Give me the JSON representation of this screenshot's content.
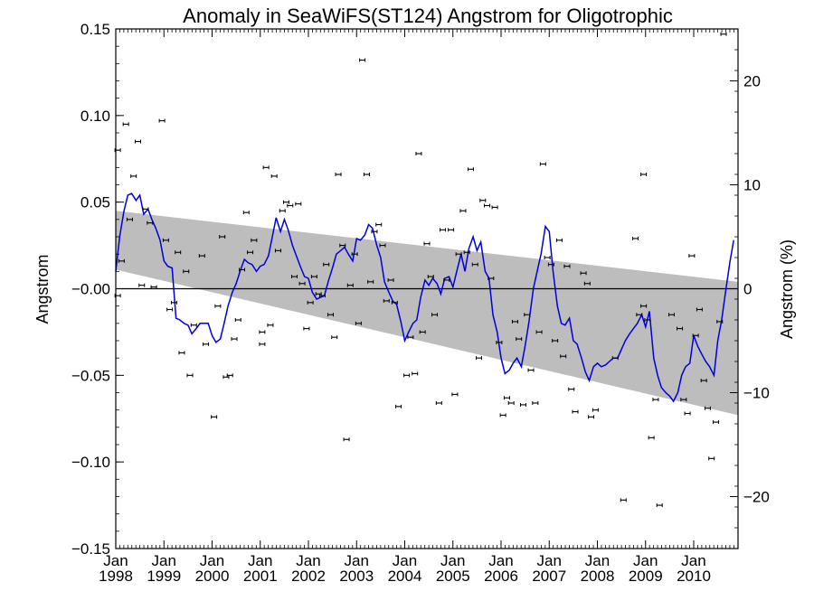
{
  "chart_data": {
    "type": "scatter",
    "title": "Anomaly in SeaWiFS(ST124) Angstrom for Oligotrophic",
    "ylabel": "Angstrom",
    "y2label": "Angstrom (%)",
    "xlim": [
      1998.0,
      2010.92
    ],
    "ylim": [
      -0.15,
      0.15
    ],
    "y2lim": [
      -25,
      25
    ],
    "grid": false,
    "zero_line": true,
    "colors": {
      "smooth": "#0000dd",
      "band": "#bdbdbd",
      "points": "#000000"
    },
    "x_ticks": [
      {
        "value": 1998.0,
        "month": "Jan",
        "year": "1998"
      },
      {
        "value": 1999.0,
        "month": "Jan",
        "year": "1999"
      },
      {
        "value": 2000.0,
        "month": "Jan",
        "year": "2000"
      },
      {
        "value": 2001.0,
        "month": "Jan",
        "year": "2001"
      },
      {
        "value": 2002.0,
        "month": "Jan",
        "year": "2002"
      },
      {
        "value": 2003.0,
        "month": "Jan",
        "year": "2003"
      },
      {
        "value": 2004.0,
        "month": "Jan",
        "year": "2004"
      },
      {
        "value": 2005.0,
        "month": "Jan",
        "year": "2005"
      },
      {
        "value": 2006.0,
        "month": "Jan",
        "year": "2006"
      },
      {
        "value": 2007.0,
        "month": "Jan",
        "year": "2007"
      },
      {
        "value": 2008.0,
        "month": "Jan",
        "year": "2008"
      },
      {
        "value": 2009.0,
        "month": "Jan",
        "year": "2009"
      },
      {
        "value": 2010.0,
        "month": "Jan",
        "year": "2010"
      }
    ],
    "y_ticks": [
      {
        "value": 0.15,
        "label": "0.15"
      },
      {
        "value": 0.1,
        "label": "0.10"
      },
      {
        "value": 0.05,
        "label": "0.05"
      },
      {
        "value": 0.0,
        "label": "−0.00"
      },
      {
        "value": -0.05,
        "label": "−0.05"
      },
      {
        "value": -0.1,
        "label": "−0.10"
      },
      {
        "value": -0.15,
        "label": "−0.15"
      }
    ],
    "y2_ticks": [
      {
        "value": 20,
        "label": "20"
      },
      {
        "value": 10,
        "label": "10"
      },
      {
        "value": 0,
        "label": "0"
      },
      {
        "value": -10,
        "label": "−10"
      },
      {
        "value": -20,
        "label": "−20"
      }
    ],
    "band": {
      "x": [
        1998.0,
        2010.92
      ],
      "upper": [
        0.045,
        0.004
      ],
      "lower": [
        0.011,
        -0.073
      ]
    },
    "points": [
      [
        1998.04,
        0.08
      ],
      [
        1998.04,
        -0.004
      ],
      [
        1998.12,
        0.016
      ],
      [
        1998.21,
        0.095
      ],
      [
        1998.29,
        0.04
      ],
      [
        1998.37,
        0.065
      ],
      [
        1998.46,
        0.085
      ],
      [
        1998.54,
        0.002
      ],
      [
        1998.62,
        0.046
      ],
      [
        1998.71,
        0.038
      ],
      [
        1998.79,
        0.001
      ],
      [
        1998.96,
        0.097
      ],
      [
        1999.04,
        0.028
      ],
      [
        1999.12,
        -0.012
      ],
      [
        1999.21,
        -0.008
      ],
      [
        1999.29,
        0.021
      ],
      [
        1999.37,
        -0.037
      ],
      [
        1999.46,
        0.01
      ],
      [
        1999.54,
        -0.05
      ],
      [
        1999.62,
        -0.021
      ],
      [
        1999.79,
        0.019
      ],
      [
        1999.87,
        -0.032
      ],
      [
        2000.04,
        -0.074
      ],
      [
        2000.12,
        -0.01
      ],
      [
        2000.21,
        0.03
      ],
      [
        2000.29,
        -0.051
      ],
      [
        2000.37,
        -0.05
      ],
      [
        2000.46,
        -0.029
      ],
      [
        2000.54,
        -0.018
      ],
      [
        2000.62,
        0.011
      ],
      [
        2000.71,
        0.044
      ],
      [
        2000.79,
        0.021
      ],
      [
        2000.87,
        0.028
      ],
      [
        2001.04,
        -0.025
      ],
      [
        2001.04,
        -0.032
      ],
      [
        2001.12,
        0.07
      ],
      [
        2001.21,
        -0.021
      ],
      [
        2001.29,
        0.065
      ],
      [
        2001.37,
        0.022
      ],
      [
        2001.46,
        0.045
      ],
      [
        2001.54,
        0.05
      ],
      [
        2001.62,
        0.048
      ],
      [
        2001.71,
        0.007
      ],
      [
        2001.79,
        0.049
      ],
      [
        2001.87,
        0.003
      ],
      [
        2001.96,
        -0.023
      ],
      [
        2002.04,
        -0.008
      ],
      [
        2002.12,
        0.007
      ],
      [
        2002.21,
        -0.003
      ],
      [
        2002.29,
        -0.004
      ],
      [
        2002.37,
        0.014
      ],
      [
        2002.46,
        -0.015
      ],
      [
        2002.54,
        -0.028
      ],
      [
        2002.62,
        0.066
      ],
      [
        2002.71,
        0.025
      ],
      [
        2002.79,
        -0.087
      ],
      [
        2002.87,
        0.002
      ],
      [
        2002.96,
        0.02
      ],
      [
        2003.04,
        -0.02
      ],
      [
        2003.12,
        0.132
      ],
      [
        2003.21,
        0.066
      ],
      [
        2003.29,
        0.004
      ],
      [
        2003.37,
        0.033
      ],
      [
        2003.46,
        0.037
      ],
      [
        2003.54,
        0.025
      ],
      [
        2003.62,
        -0.007
      ],
      [
        2003.71,
        0.005
      ],
      [
        2003.79,
        -0.008
      ],
      [
        2003.87,
        -0.068
      ],
      [
        2004.04,
        -0.05
      ],
      [
        2004.12,
        -0.028
      ],
      [
        2004.21,
        -0.049
      ],
      [
        2004.29,
        0.078
      ],
      [
        2004.37,
        -0.025
      ],
      [
        2004.46,
        0.026
      ],
      [
        2004.54,
        0.007
      ],
      [
        2004.62,
        -0.015
      ],
      [
        2004.71,
        -0.066
      ],
      [
        2004.79,
        0.034
      ],
      [
        2004.87,
        0.005
      ],
      [
        2004.96,
        0.034
      ],
      [
        2005.04,
        -0.061
      ],
      [
        2005.12,
        0.02
      ],
      [
        2005.21,
        0.045
      ],
      [
        2005.29,
        0.021
      ],
      [
        2005.37,
        0.069
      ],
      [
        2005.46,
        0.014
      ],
      [
        2005.54,
        -0.04
      ],
      [
        2005.62,
        0.051
      ],
      [
        2005.71,
        0.048
      ],
      [
        2005.79,
        0.006
      ],
      [
        2005.87,
        0.047
      ],
      [
        2005.96,
        -0.031
      ],
      [
        2006.04,
        -0.073
      ],
      [
        2006.12,
        -0.063
      ],
      [
        2006.21,
        -0.066
      ],
      [
        2006.29,
        -0.019
      ],
      [
        2006.37,
        -0.029
      ],
      [
        2006.46,
        -0.067
      ],
      [
        2006.54,
        -0.015
      ],
      [
        2006.62,
        -0.047
      ],
      [
        2006.71,
        -0.066
      ],
      [
        2006.79,
        -0.025
      ],
      [
        2006.87,
        0.072
      ],
      [
        2006.96,
        0.018
      ],
      [
        2007.04,
        0.014
      ],
      [
        2007.12,
        -0.03
      ],
      [
        2007.21,
        0.028
      ],
      [
        2007.29,
        -0.039
      ],
      [
        2007.37,
        0.013
      ],
      [
        2007.46,
        -0.058
      ],
      [
        2007.54,
        -0.071
      ],
      [
        2007.71,
        0.009
      ],
      [
        2007.79,
        0.003
      ],
      [
        2007.87,
        -0.074
      ],
      [
        2007.96,
        -0.07
      ],
      [
        2008.37,
        -0.04
      ],
      [
        2008.54,
        -0.122
      ],
      [
        2008.79,
        0.029
      ],
      [
        2008.87,
        -0.015
      ],
      [
        2008.96,
        0.066
      ],
      [
        2008.96,
        -0.01
      ],
      [
        2009.04,
        -0.018
      ],
      [
        2009.12,
        -0.086
      ],
      [
        2009.21,
        -0.064
      ],
      [
        2009.29,
        -0.125
      ],
      [
        2009.54,
        -0.015
      ],
      [
        2009.71,
        -0.023
      ],
      [
        2009.79,
        -0.064
      ],
      [
        2009.87,
        -0.072
      ],
      [
        2009.96,
        0.019
      ],
      [
        2010.04,
        -0.027
      ],
      [
        2010.12,
        -0.012
      ],
      [
        2010.21,
        -0.053
      ],
      [
        2010.29,
        -0.069
      ],
      [
        2010.37,
        -0.098
      ],
      [
        2010.46,
        -0.077
      ],
      [
        2010.54,
        -0.019
      ],
      [
        2010.62,
        0.147
      ]
    ],
    "smooth_line": [
      [
        1998.0,
        0.01
      ],
      [
        1998.08,
        0.03
      ],
      [
        1998.17,
        0.045
      ],
      [
        1998.25,
        0.054
      ],
      [
        1998.33,
        0.055
      ],
      [
        1998.42,
        0.051
      ],
      [
        1998.5,
        0.054
      ],
      [
        1998.58,
        0.043
      ],
      [
        1998.67,
        0.046
      ],
      [
        1998.75,
        0.04
      ],
      [
        1998.83,
        0.035
      ],
      [
        1998.92,
        0.028
      ],
      [
        1999.0,
        0.016
      ],
      [
        1999.08,
        0.013
      ],
      [
        1999.17,
        0.012
      ],
      [
        1999.25,
        -0.017
      ],
      [
        1999.33,
        -0.018
      ],
      [
        1999.42,
        -0.02
      ],
      [
        1999.5,
        -0.021
      ],
      [
        1999.58,
        -0.026
      ],
      [
        1999.67,
        -0.023
      ],
      [
        1999.75,
        -0.02
      ],
      [
        1999.83,
        -0.02
      ],
      [
        1999.92,
        -0.02
      ],
      [
        2000.0,
        -0.027
      ],
      [
        2000.08,
        -0.031
      ],
      [
        2000.17,
        -0.029
      ],
      [
        2000.25,
        -0.02
      ],
      [
        2000.33,
        -0.01
      ],
      [
        2000.42,
        -0.002
      ],
      [
        2000.5,
        0.003
      ],
      [
        2000.58,
        0.01
      ],
      [
        2000.67,
        0.017
      ],
      [
        2000.75,
        0.015
      ],
      [
        2000.83,
        0.014
      ],
      [
        2000.92,
        0.01
      ],
      [
        2001.0,
        0.013
      ],
      [
        2001.08,
        0.014
      ],
      [
        2001.17,
        0.019
      ],
      [
        2001.25,
        0.03
      ],
      [
        2001.33,
        0.041
      ],
      [
        2001.42,
        0.033
      ],
      [
        2001.5,
        0.04
      ],
      [
        2001.58,
        0.034
      ],
      [
        2001.67,
        0.025
      ],
      [
        2001.75,
        0.019
      ],
      [
        2001.83,
        0.013
      ],
      [
        2001.92,
        0.007
      ],
      [
        2002.0,
        0.006
      ],
      [
        2002.08,
        -0.002
      ],
      [
        2002.17,
        -0.006
      ],
      [
        2002.25,
        -0.005
      ],
      [
        2002.33,
        -0.004
      ],
      [
        2002.42,
        0.005
      ],
      [
        2002.5,
        0.012
      ],
      [
        2002.58,
        0.02
      ],
      [
        2002.67,
        0.022
      ],
      [
        2002.75,
        0.024
      ],
      [
        2002.83,
        0.02
      ],
      [
        2002.92,
        0.016
      ],
      [
        2003.0,
        0.029
      ],
      [
        2003.08,
        0.028
      ],
      [
        2003.17,
        0.031
      ],
      [
        2003.25,
        0.037
      ],
      [
        2003.33,
        0.035
      ],
      [
        2003.42,
        0.025
      ],
      [
        2003.5,
        0.018
      ],
      [
        2003.58,
        0.004
      ],
      [
        2003.67,
        -0.002
      ],
      [
        2003.75,
        -0.007
      ],
      [
        2003.83,
        -0.009
      ],
      [
        2003.92,
        -0.019
      ],
      [
        2004.0,
        -0.03
      ],
      [
        2004.08,
        -0.025
      ],
      [
        2004.17,
        -0.02
      ],
      [
        2004.25,
        -0.018
      ],
      [
        2004.33,
        -0.005
      ],
      [
        2004.42,
        0.005
      ],
      [
        2004.5,
        0.002
      ],
      [
        2004.58,
        0.006
      ],
      [
        2004.67,
        0.003
      ],
      [
        2004.75,
        -0.003
      ],
      [
        2004.83,
        0.006
      ],
      [
        2004.92,
        0.007
      ],
      [
        2005.0,
        0.001
      ],
      [
        2005.08,
        0.01
      ],
      [
        2005.17,
        0.02
      ],
      [
        2005.25,
        0.01
      ],
      [
        2005.33,
        0.023
      ],
      [
        2005.42,
        0.03
      ],
      [
        2005.5,
        0.022
      ],
      [
        2005.58,
        0.027
      ],
      [
        2005.67,
        0.01
      ],
      [
        2005.75,
        0.006
      ],
      [
        2005.83,
        -0.015
      ],
      [
        2005.92,
        -0.025
      ],
      [
        2006.0,
        -0.04
      ],
      [
        2006.08,
        -0.049
      ],
      [
        2006.17,
        -0.047
      ],
      [
        2006.25,
        -0.043
      ],
      [
        2006.33,
        -0.04
      ],
      [
        2006.42,
        -0.045
      ],
      [
        2006.5,
        -0.033
      ],
      [
        2006.58,
        -0.019
      ],
      [
        2006.67,
        0.0
      ],
      [
        2006.75,
        0.01
      ],
      [
        2006.83,
        0.02
      ],
      [
        2006.92,
        0.036
      ],
      [
        2007.0,
        0.033
      ],
      [
        2007.08,
        0.01
      ],
      [
        2007.17,
        -0.01
      ],
      [
        2007.25,
        -0.02
      ],
      [
        2007.33,
        -0.021
      ],
      [
        2007.42,
        -0.017
      ],
      [
        2007.5,
        -0.03
      ],
      [
        2007.58,
        -0.032
      ],
      [
        2007.67,
        -0.04
      ],
      [
        2007.75,
        -0.048
      ],
      [
        2007.83,
        -0.053
      ],
      [
        2007.92,
        -0.045
      ],
      [
        2008.0,
        -0.043
      ],
      [
        2008.08,
        -0.045
      ],
      [
        2008.17,
        -0.044
      ],
      [
        2008.25,
        -0.042
      ],
      [
        2008.33,
        -0.04
      ],
      [
        2008.42,
        -0.04
      ],
      [
        2008.5,
        -0.035
      ],
      [
        2008.58,
        -0.03
      ],
      [
        2008.67,
        -0.026
      ],
      [
        2008.75,
        -0.023
      ],
      [
        2008.83,
        -0.02
      ],
      [
        2008.92,
        -0.015
      ],
      [
        2009.0,
        -0.022
      ],
      [
        2009.08,
        -0.013
      ],
      [
        2009.17,
        -0.04
      ],
      [
        2009.25,
        -0.05
      ],
      [
        2009.33,
        -0.057
      ],
      [
        2009.42,
        -0.06
      ],
      [
        2009.5,
        -0.062
      ],
      [
        2009.58,
        -0.065
      ],
      [
        2009.67,
        -0.06
      ],
      [
        2009.75,
        -0.05
      ],
      [
        2009.83,
        -0.045
      ],
      [
        2009.92,
        -0.043
      ],
      [
        2010.0,
        -0.027
      ],
      [
        2010.08,
        -0.033
      ],
      [
        2010.17,
        -0.038
      ],
      [
        2010.25,
        -0.042
      ],
      [
        2010.33,
        -0.045
      ],
      [
        2010.42,
        -0.05
      ],
      [
        2010.5,
        -0.03
      ],
      [
        2010.58,
        -0.018
      ],
      [
        2010.67,
        0.0
      ],
      [
        2010.75,
        0.015
      ],
      [
        2010.83,
        0.028
      ]
    ]
  }
}
